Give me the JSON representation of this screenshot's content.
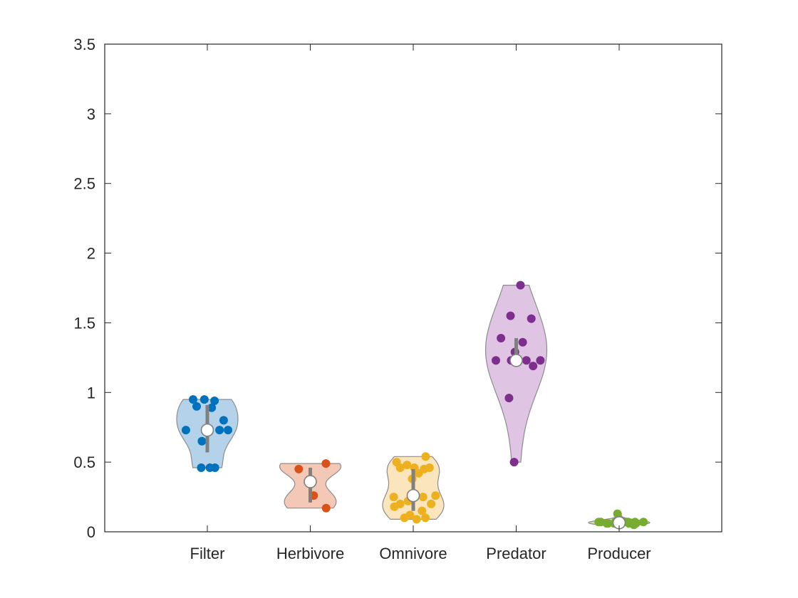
{
  "chart_data": {
    "type": "violin",
    "title": "",
    "xlabel": "",
    "ylabel": "",
    "ylim": [
      0,
      3.5
    ],
    "yticks": [
      0,
      0.5,
      1,
      1.5,
      2,
      2.5,
      3,
      3.5
    ],
    "ytick_labels": [
      "0",
      "0.5",
      "1",
      "1.5",
      "2",
      "2.5",
      "3",
      "3.5"
    ],
    "grid": false,
    "categories": [
      "Filter",
      "Herbivore",
      "Omnivore",
      "Predator",
      "Producer"
    ],
    "groups": [
      {
        "name": "Filter",
        "color": "#0072BD",
        "fill": "#b4d3ea",
        "median": 0.73,
        "q1": 0.57,
        "q3": 0.91,
        "points": [
          0.95,
          0.94,
          0.95,
          0.8,
          0.9,
          0.89,
          0.73,
          0.73,
          0.73,
          0.73,
          0.65,
          0.46,
          0.46,
          0.46
        ]
      },
      {
        "name": "Herbivore",
        "color": "#D95319",
        "fill": "#f3c8b6",
        "median": 0.36,
        "q1": 0.21,
        "q3": 0.46,
        "points": [
          0.49,
          0.45,
          0.26,
          0.17
        ]
      },
      {
        "name": "Omnivore",
        "color": "#EDB120",
        "fill": "#fae5bc",
        "median": 0.26,
        "q1": 0.15,
        "q3": 0.45,
        "points": [
          0.54,
          0.5,
          0.46,
          0.45,
          0.48,
          0.46,
          0.46,
          0.42,
          0.38,
          0.26,
          0.25,
          0.25,
          0.22,
          0.2,
          0.2,
          0.18,
          0.15,
          0.12,
          0.1,
          0.1,
          0.09
        ]
      },
      {
        "name": "Predator",
        "color": "#7E2F8E",
        "fill": "#dfc4e4",
        "median": 1.23,
        "q1": 1.22,
        "q3": 1.39,
        "points": [
          1.77,
          1.55,
          1.53,
          1.39,
          1.36,
          1.29,
          1.23,
          1.23,
          1.23,
          1.23,
          1.19,
          0.96,
          0.5
        ]
      },
      {
        "name": "Producer",
        "color": "#77AC30",
        "fill": "#c9e0ab",
        "median": 0.065,
        "q1": 0.06,
        "q3": 0.07,
        "points": [
          0.13,
          0.07,
          0.07,
          0.07,
          0.07,
          0.06,
          0.06,
          0.06,
          0.06,
          0.07,
          0.07,
          0.07,
          0.07,
          0.06,
          0.07,
          0.05
        ]
      }
    ]
  }
}
